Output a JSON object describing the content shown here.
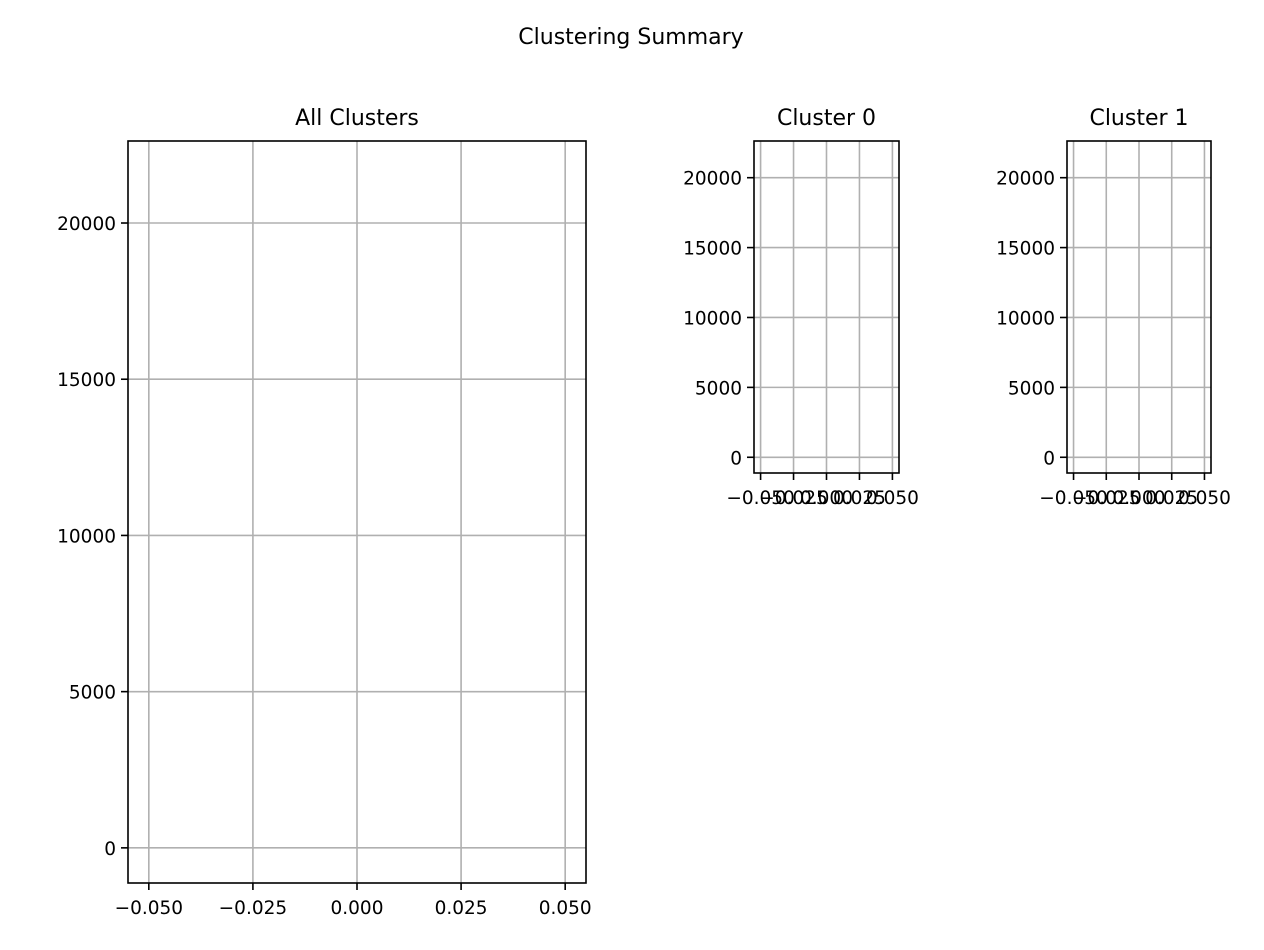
{
  "figure": {
    "suptitle": "Clustering Summary"
  },
  "chart_data": [
    {
      "type": "scatter",
      "title": "All Clusters",
      "series": [],
      "xlim": [
        -0.055,
        0.055
      ],
      "ylim": [
        -1125,
        22625
      ],
      "xticks": [
        -0.05,
        -0.025,
        0.0,
        0.025,
        0.05
      ],
      "xtick_labels": [
        "−0.050",
        "−0.025",
        "0.000",
        "0.025",
        "0.050"
      ],
      "yticks": [
        0,
        5000,
        10000,
        15000,
        20000
      ],
      "ytick_labels": [
        "0",
        "5000",
        "10000",
        "15000",
        "20000"
      ],
      "grid": true,
      "xlabel": "",
      "ylabel": ""
    },
    {
      "type": "scatter",
      "title": "Cluster 0",
      "series": [],
      "xlim": [
        -0.055,
        0.055
      ],
      "ylim": [
        -1125,
        22625
      ],
      "xticks": [
        -0.05,
        -0.025,
        0.0,
        0.025,
        0.05
      ],
      "xtick_labels": [
        "−0.050",
        "−0.025",
        "0.000",
        "0.025",
        "0.050"
      ],
      "yticks": [
        0,
        5000,
        10000,
        15000,
        20000
      ],
      "ytick_labels": [
        "0",
        "5000",
        "10000",
        "15000",
        "20000"
      ],
      "grid": true,
      "xlabel": "",
      "ylabel": ""
    },
    {
      "type": "scatter",
      "title": "Cluster 1",
      "series": [],
      "xlim": [
        -0.055,
        0.055
      ],
      "ylim": [
        -1125,
        22625
      ],
      "xticks": [
        -0.05,
        -0.025,
        0.0,
        0.025,
        0.05
      ],
      "xtick_labels": [
        "−0.050",
        "−0.025",
        "0.000",
        "0.025",
        "0.050"
      ],
      "yticks": [
        0,
        5000,
        10000,
        15000,
        20000
      ],
      "ytick_labels": [
        "0",
        "5000",
        "10000",
        "15000",
        "20000"
      ],
      "grid": true,
      "xlabel": "",
      "ylabel": ""
    }
  ],
  "colors": {
    "grid": "#b0b0b0",
    "spine": "#000000",
    "text": "#000000",
    "background": "#ffffff"
  }
}
